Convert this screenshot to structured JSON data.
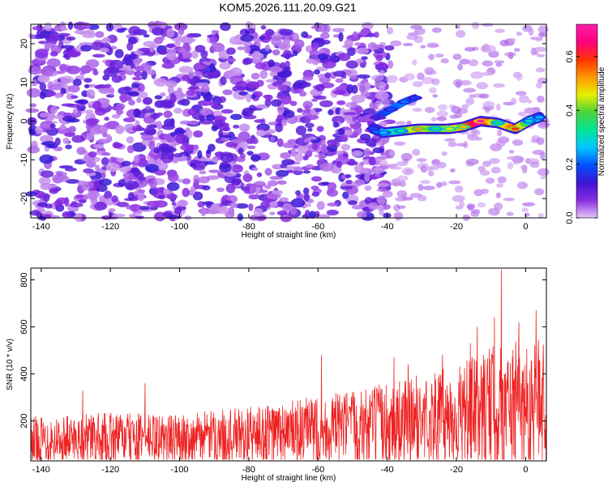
{
  "title": "KOM5.2026.111.20.09.G21",
  "chart_data": [
    {
      "type": "heatmap",
      "xlabel": "Height of straight line (km)",
      "ylabel": "Frequency (Hz)",
      "xlim": [
        -143,
        6
      ],
      "ylim": [
        -25,
        25
      ],
      "xticks": [
        -140,
        -120,
        -100,
        -80,
        -60,
        -40,
        -20,
        0
      ],
      "yticks": [
        -20,
        -10,
        0,
        10,
        20
      ],
      "colorbar": {
        "label": "Normalized spectral amplitude",
        "range": [
          0,
          0.72
        ],
        "ticks": [
          0.0,
          0.2,
          0.4,
          0.6
        ],
        "colors": [
          "#e6c8f5",
          "#8a2be2",
          "#3c14d2",
          "#0050ff",
          "#00c8ff",
          "#00e696",
          "#4bd23c",
          "#e6f000",
          "#ff9600",
          "#ff3200",
          "#ff0080",
          "#ff1eaa"
        ]
      },
      "noise_region": {
        "x_range": [
          -143,
          -43
        ],
        "y_range": [
          -25,
          25
        ],
        "level_range": [
          0.02,
          0.14
        ]
      },
      "ridge": {
        "points": [
          {
            "x": -44,
            "y": -2,
            "level": 0.18
          },
          {
            "x": -41,
            "y": -3,
            "level": 0.26
          },
          {
            "x": -36,
            "y": -2.5,
            "level": 0.32
          },
          {
            "x": -31,
            "y": -2,
            "level": 0.52
          },
          {
            "x": -26,
            "y": -2,
            "level": 0.35
          },
          {
            "x": -22,
            "y": -2,
            "level": 0.45
          },
          {
            "x": -18,
            "y": -1.5,
            "level": 0.5
          },
          {
            "x": -13,
            "y": 0,
            "level": 0.72
          },
          {
            "x": -8,
            "y": -0.5,
            "level": 0.35
          },
          {
            "x": -3,
            "y": -2,
            "level": 0.6
          },
          {
            "x": 1,
            "y": 0,
            "level": 0.3
          },
          {
            "x": 4,
            "y": 1,
            "level": 0.25
          }
        ],
        "branch": [
          {
            "x": -43,
            "y": 1,
            "level": 0.15
          },
          {
            "x": -39,
            "y": 3,
            "level": 0.2
          },
          {
            "x": -35,
            "y": 5,
            "level": 0.22
          },
          {
            "x": -32,
            "y": 6,
            "level": 0.18
          }
        ]
      }
    },
    {
      "type": "line",
      "xlabel": "Height of straight line (km)",
      "ylabel": "SNR (10 * v/v)",
      "xlim": [
        -143,
        6
      ],
      "ylim": [
        30,
        850
      ],
      "xticks": [
        -140,
        -120,
        -100,
        -80,
        -60,
        -40,
        -20,
        0
      ],
      "yticks": [
        200,
        400,
        600,
        800
      ],
      "series": [
        {
          "color": "#ee2222",
          "envelope": [
            {
              "x": -143,
              "low": 40,
              "high": 250
            },
            {
              "x": -120,
              "low": 40,
              "high": 270
            },
            {
              "x": -100,
              "low": 40,
              "high": 260
            },
            {
              "x": -80,
              "low": 40,
              "high": 300
            },
            {
              "x": -60,
              "low": 40,
              "high": 350
            },
            {
              "x": -40,
              "low": 40,
              "high": 420
            },
            {
              "x": -20,
              "low": 40,
              "high": 500
            },
            {
              "x": -10,
              "low": 40,
              "high": 600
            },
            {
              "x": 6,
              "low": 40,
              "high": 650
            }
          ],
          "peaks": [
            {
              "x": -128,
              "y": 330
            },
            {
              "x": -110,
              "y": 360
            },
            {
              "x": -59,
              "y": 480
            },
            {
              "x": -38,
              "y": 470
            },
            {
              "x": -34,
              "y": 440
            },
            {
              "x": -24,
              "y": 480
            },
            {
              "x": -16,
              "y": 530
            },
            {
              "x": -14,
              "y": 600
            },
            {
              "x": -9,
              "y": 640
            },
            {
              "x": -7,
              "y": 845
            },
            {
              "x": -2,
              "y": 620
            },
            {
              "x": 3,
              "y": 670
            }
          ]
        }
      ]
    }
  ]
}
